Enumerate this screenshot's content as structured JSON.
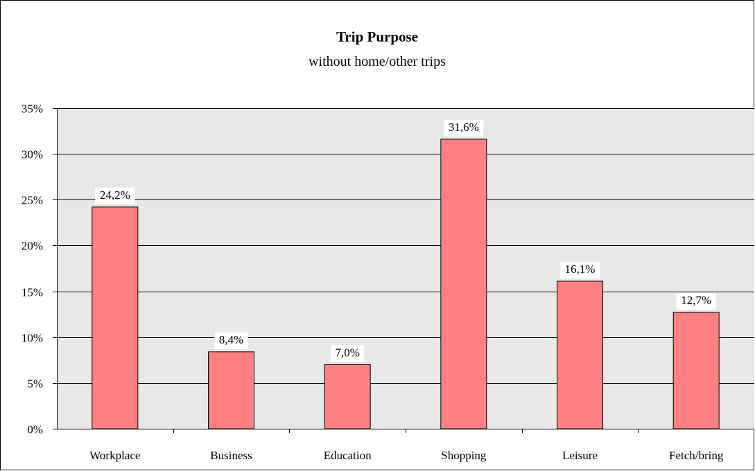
{
  "chart_data": {
    "type": "bar",
    "title": "Trip Purpose",
    "subtitle": "without home/other trips",
    "categories": [
      "Workplace",
      "Business",
      "Education",
      "Shopping",
      "Leisure",
      "Fetch/bring"
    ],
    "values": [
      24.2,
      8.4,
      7.0,
      31.6,
      16.1,
      12.7
    ],
    "data_labels": [
      "24,2%",
      "8,4%",
      "7,0%",
      "31,6%",
      "16,1%",
      "12,7%"
    ],
    "y_ticks": [
      "0%",
      "5%",
      "10%",
      "15%",
      "20%",
      "25%",
      "30%",
      "35%"
    ],
    "ylim": [
      0,
      35
    ],
    "y_step": 5,
    "xlabel": "",
    "ylabel": "",
    "grid": true,
    "legend": "none",
    "colors": {
      "bar": "#FF8080",
      "plot_background": "#E8E8E8",
      "gridline": "#000000",
      "border": "#000000"
    }
  }
}
